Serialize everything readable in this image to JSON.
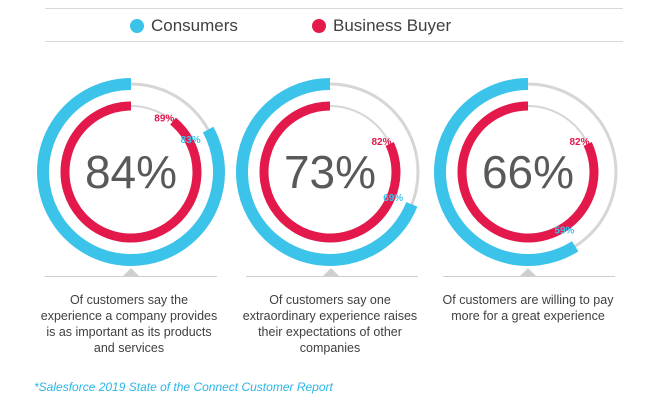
{
  "legend": {
    "consumers_label": "Consumers",
    "business_label": "Business Buyer"
  },
  "colors": {
    "consumers": "#3cc3ea",
    "business": "#e3194c",
    "track": "#d6d6d6",
    "center_text": "#595959"
  },
  "chart_data": [
    {
      "type": "pie",
      "center_value": "84%",
      "series": [
        {
          "name": "Consumers",
          "value": 83,
          "label": "83%"
        },
        {
          "name": "Business Buyer",
          "value": 89,
          "label": "89%"
        }
      ],
      "caption": "Of customers say the experience a company provides is as important as its products and services"
    },
    {
      "type": "pie",
      "center_value": "73%",
      "series": [
        {
          "name": "Consumers",
          "value": 69,
          "label": "69%"
        },
        {
          "name": "Business Buyer",
          "value": 82,
          "label": "82%"
        }
      ],
      "caption": "Of customers say one extraordinary experience raises their expectations of other companies"
    },
    {
      "type": "pie",
      "center_value": "66%",
      "series": [
        {
          "name": "Consumers",
          "value": 59,
          "label": "59%"
        },
        {
          "name": "Business Buyer",
          "value": 82,
          "label": "82%"
        }
      ],
      "caption": "Of customers are willing to pay more for a great experience"
    }
  ],
  "footnote": "*Salesforce 2019 State of the Connect Customer Report"
}
